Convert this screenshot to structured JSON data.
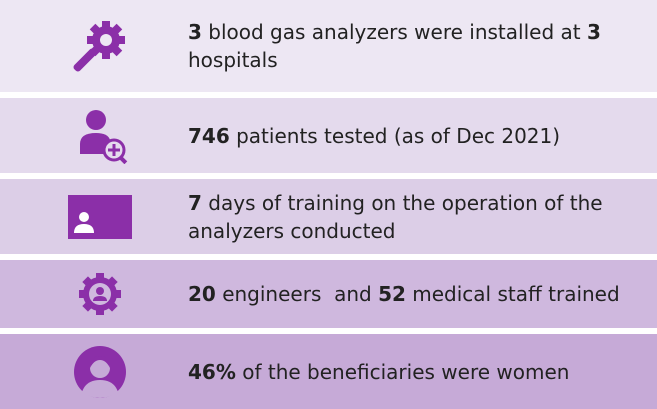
{
  "rows": [
    {
      "segments": [
        {
          "text": "3",
          "bold": true
        },
        {
          "text": " blood gas analyzers were installed at "
        },
        {
          "text": "3",
          "bold": true
        },
        {
          "text": " hospitals"
        }
      ]
    },
    {
      "segments": [
        {
          "text": "746",
          "bold": true
        },
        {
          "text": " patients tested (as of Dec 2021)"
        }
      ]
    },
    {
      "segments": [
        {
          "text": "7",
          "bold": true
        },
        {
          "text": " days of training on the operation of the analyzers conducted"
        }
      ]
    },
    {
      "segments": [
        {
          "text": "20",
          "bold": true
        },
        {
          "text": " engineers  and "
        },
        {
          "text": "52",
          "bold": true
        },
        {
          "text": " medical staff trained"
        }
      ]
    },
    {
      "segments": [
        {
          "text": "46%",
          "bold": true
        },
        {
          "text": " of the beneficiaries were women"
        }
      ]
    }
  ]
}
